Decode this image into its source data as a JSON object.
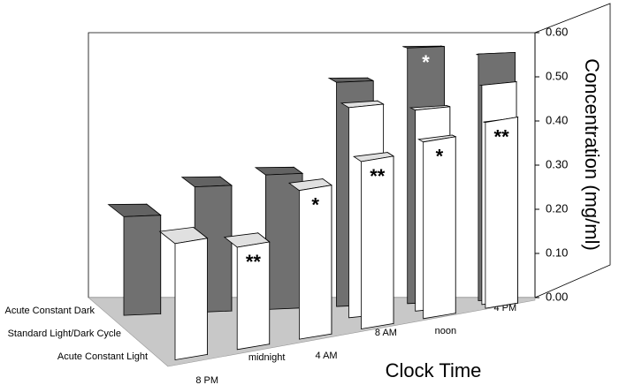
{
  "chart_data": {
    "type": "bar3d",
    "xlabel": "Clock Time",
    "ylabel": "Concentration (mg/ml)",
    "categories": [
      "8 PM",
      "midnight",
      "4 AM",
      "8 AM",
      "noon",
      "4 PM"
    ],
    "series": [
      {
        "name": "Acute Constant Dark",
        "color": "#707070",
        "values": [
          0.22,
          0.28,
          0.3,
          0.5,
          0.57,
          0.55
        ]
      },
      {
        "name": "Standard Light/Dark Cycle",
        "color": "#ffffff",
        "values": [
          null,
          null,
          null,
          0.46,
          0.44,
          0.48
        ]
      },
      {
        "name": "Acute Constant Light",
        "color": "#ffffff",
        "values": [
          0.25,
          0.22,
          0.32,
          0.36,
          0.38,
          0.4
        ]
      }
    ],
    "ylim": [
      0,
      0.6
    ],
    "yticks": [
      {
        "value": 0,
        "label": "0.00"
      },
      {
        "value": 0.1,
        "label": "0.10"
      },
      {
        "value": 0.2,
        "label": "0.20"
      },
      {
        "value": 0.3,
        "label": "0.30"
      },
      {
        "value": 0.4,
        "label": "0.40"
      },
      {
        "value": 0.5,
        "label": "0.50"
      },
      {
        "value": 0.6,
        "label": "0.60"
      }
    ],
    "annotations": [
      {
        "text": "*",
        "series": 0,
        "index": 4,
        "color": "#ffffff"
      },
      {
        "text": "**",
        "series": 2,
        "index": 1,
        "color": "#000000"
      },
      {
        "text": "*",
        "series": 2,
        "index": 2,
        "color": "#000000"
      },
      {
        "text": "**",
        "series": 2,
        "index": 3,
        "color": "#000000"
      },
      {
        "text": "*",
        "series": 2,
        "index": 4,
        "color": "#000000"
      },
      {
        "text": "**",
        "series": 2,
        "index": 5,
        "color": "#000000"
      }
    ]
  }
}
